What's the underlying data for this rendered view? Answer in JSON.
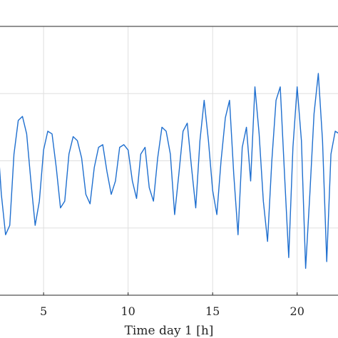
{
  "chart_data": {
    "type": "line",
    "title": "",
    "xlabel": "Time day 1 [h]",
    "ylabel": "",
    "xlim": [
      2.0,
      22.5
    ],
    "ylim": [
      -1.0,
      1.0
    ],
    "x_ticks": [
      5,
      10,
      15,
      20
    ],
    "y_gridlines": [
      -0.5,
      0.0,
      0.5
    ],
    "grid": true,
    "line_color": "#1f6fcf",
    "grid_color": "#dfdfdf",
    "series": [
      {
        "x": [
          2.0,
          2.25,
          2.5,
          2.75,
          3.0,
          3.25,
          3.5,
          3.75,
          4.0,
          4.25,
          4.5,
          4.75,
          5.0,
          5.25,
          5.5,
          5.75,
          6.0,
          6.25,
          6.5,
          6.75,
          7.0,
          7.25,
          7.5,
          7.75,
          8.0,
          8.25,
          8.5,
          8.75,
          9.0,
          9.25,
          9.5,
          9.75,
          10.0,
          10.25,
          10.5,
          10.75,
          11.0,
          11.25,
          11.5,
          11.75,
          12.0,
          12.25,
          12.5,
          12.75,
          13.0,
          13.25,
          13.5,
          13.75,
          14.0,
          14.25,
          14.5,
          14.75,
          15.0,
          15.25,
          15.5,
          15.75,
          16.0,
          16.25,
          16.5,
          16.75,
          17.0,
          17.25,
          17.5,
          17.75,
          18.0,
          18.25,
          18.5,
          18.75,
          19.0,
          19.25,
          19.5,
          19.75,
          20.0,
          20.25,
          20.5,
          20.75,
          21.0,
          21.25,
          21.5,
          21.75,
          22.0,
          22.25,
          22.5
        ],
        "values": [
          0.42,
          0.22,
          -0.25,
          -0.55,
          -0.48,
          0.05,
          0.3,
          0.33,
          0.2,
          -0.15,
          -0.48,
          -0.3,
          0.08,
          0.22,
          0.2,
          -0.05,
          -0.35,
          -0.3,
          0.05,
          0.18,
          0.15,
          0.02,
          -0.25,
          -0.32,
          -0.05,
          0.1,
          0.12,
          -0.08,
          -0.25,
          -0.15,
          0.1,
          0.12,
          0.08,
          -0.15,
          -0.28,
          0.05,
          0.1,
          -0.2,
          -0.3,
          0.02,
          0.25,
          0.22,
          0.05,
          -0.4,
          -0.1,
          0.22,
          0.28,
          -0.05,
          -0.35,
          0.15,
          0.45,
          0.15,
          -0.22,
          -0.4,
          0.0,
          0.32,
          0.45,
          -0.1,
          -0.55,
          0.1,
          0.25,
          -0.15,
          0.55,
          0.2,
          -0.3,
          -0.6,
          0.0,
          0.45,
          0.55,
          -0.1,
          -0.72,
          0.1,
          0.55,
          0.15,
          -0.8,
          -0.25,
          0.35,
          0.65,
          0.15,
          -0.75,
          0.05,
          0.22,
          0.2
        ]
      }
    ]
  }
}
